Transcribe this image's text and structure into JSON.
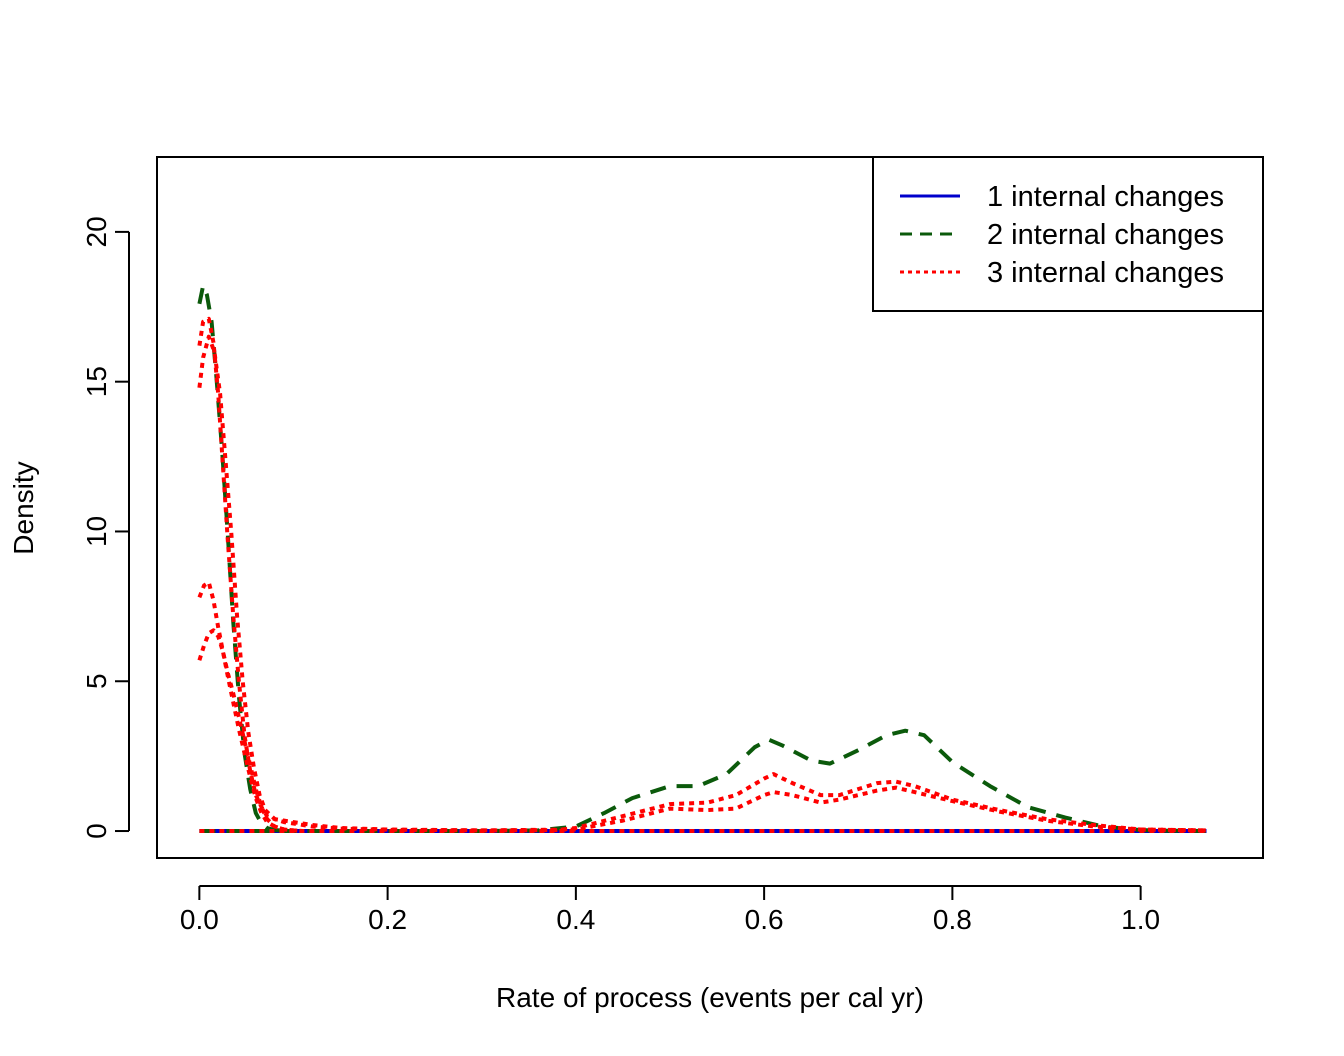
{
  "chart_data": {
    "type": "line",
    "title": "",
    "xlabel": "Rate of process (events per cal yr)",
    "ylabel": "Density",
    "xlim": [
      -0.045,
      1.13
    ],
    "ylim": [
      -0.9,
      22.5
    ],
    "xticks": [
      0.0,
      0.2,
      0.4,
      0.6,
      0.8,
      1.0
    ],
    "xtick_labels": [
      "0.0",
      "0.2",
      "0.4",
      "0.6",
      "0.8",
      "1.0"
    ],
    "yticks": [
      0,
      5,
      10,
      15,
      20
    ],
    "ytick_labels": [
      "0",
      "5",
      "10",
      "15",
      "20"
    ],
    "grid": false,
    "legend_position": "top-right",
    "series": [
      {
        "name": "1 internal changes",
        "color": "#0000cc",
        "style": "solid",
        "curves": [
          {
            "x": [
              0,
              1.07
            ],
            "y": [
              0,
              0
            ]
          }
        ]
      },
      {
        "name": "2 internal changes",
        "color": "#0b5a0b",
        "style": "dashed",
        "curves": [
          {
            "x": [
              0.0,
              0.004,
              0.008,
              0.013,
              0.018,
              0.024,
              0.03,
              0.036,
              0.042,
              0.048,
              0.054,
              0.06,
              0.066,
              0.072,
              0.08,
              0.09,
              0.1
            ],
            "y": [
              17.6,
              18.2,
              17.9,
              17.0,
              15.2,
              12.8,
              10.0,
              7.0,
              4.5,
              2.6,
              1.4,
              0.6,
              0.25,
              0.1,
              0.03,
              0.01,
              0.0
            ]
          },
          {
            "x": [
              0.0,
              0.06,
              0.1,
              0.2,
              0.3,
              0.36,
              0.4,
              0.43,
              0.46,
              0.5,
              0.53,
              0.56,
              0.59,
              0.605,
              0.62,
              0.65,
              0.67,
              0.7,
              0.73,
              0.75,
              0.77,
              0.8,
              0.84,
              0.88,
              0.92,
              0.96,
              1.0,
              1.03,
              1.07
            ],
            "y": [
              0,
              0,
              0,
              0,
              0,
              0.02,
              0.15,
              0.6,
              1.1,
              1.5,
              1.5,
              1.9,
              2.8,
              3.05,
              2.85,
              2.35,
              2.25,
              2.7,
              3.2,
              3.35,
              3.2,
              2.3,
              1.5,
              0.8,
              0.45,
              0.15,
              0.03,
              0.01,
              0.0
            ]
          }
        ]
      },
      {
        "name": "3 internal changes",
        "color": "#ff0000",
        "style": "dotted",
        "curves": [
          {
            "x": [
              0.0,
              0.004,
              0.01,
              0.015,
              0.02,
              0.025,
              0.03,
              0.036,
              0.042,
              0.048,
              0.054,
              0.06,
              0.066,
              0.072,
              0.08,
              0.09,
              0.1,
              0.12,
              0.15,
              0.2,
              0.3,
              0.38,
              0.4,
              0.45,
              0.5,
              0.54,
              0.57,
              0.6,
              0.61,
              0.63,
              0.66,
              0.68,
              0.72,
              0.74,
              0.76,
              0.8,
              0.85,
              0.9,
              0.95,
              1.0,
              1.07
            ],
            "y": [
              16.2,
              17.0,
              17.1,
              16.3,
              14.6,
              12.2,
              9.8,
              7.2,
              5.0,
              3.2,
              2.0,
              1.2,
              0.8,
              0.5,
              0.4,
              0.35,
              0.3,
              0.2,
              0.1,
              0.05,
              0.02,
              0.03,
              0.1,
              0.5,
              0.9,
              0.95,
              1.2,
              1.75,
              1.9,
              1.6,
              1.2,
              1.2,
              1.6,
              1.65,
              1.5,
              1.05,
              0.7,
              0.4,
              0.2,
              0.05,
              0.02
            ]
          },
          {
            "x": [
              0.0,
              0.004,
              0.01,
              0.016,
              0.022,
              0.028,
              0.034,
              0.04,
              0.046,
              0.052,
              0.058,
              0.064,
              0.07,
              0.08,
              0.09,
              0.1,
              0.12,
              0.15,
              0.2,
              0.3,
              0.4,
              0.45,
              0.5,
              0.54,
              0.57,
              0.6,
              0.61,
              0.63,
              0.66,
              0.68,
              0.72,
              0.74,
              0.76,
              0.8,
              0.85,
              0.9,
              0.95,
              1.0,
              1.07
            ],
            "y": [
              14.8,
              15.8,
              16.5,
              16.0,
              14.6,
              12.3,
              9.9,
              7.2,
              5.0,
              3.3,
              2.1,
              1.2,
              0.7,
              0.4,
              0.3,
              0.25,
              0.15,
              0.08,
              0.04,
              0.02,
              0.05,
              0.35,
              0.75,
              0.7,
              0.75,
              1.2,
              1.3,
              1.2,
              0.95,
              1.05,
              1.35,
              1.45,
              1.3,
              1.0,
              0.65,
              0.35,
              0.15,
              0.05,
              0.02
            ]
          },
          {
            "x": [
              0.0,
              0.005,
              0.01,
              0.015,
              0.02,
              0.025,
              0.03,
              0.036,
              0.042,
              0.048,
              0.054,
              0.06,
              0.066,
              0.072,
              0.08,
              0.09,
              0.1,
              0.11
            ],
            "y": [
              7.8,
              8.2,
              8.3,
              7.7,
              6.8,
              6.0,
              5.2,
              4.3,
              3.4,
              2.6,
              1.8,
              1.1,
              0.6,
              0.3,
              0.15,
              0.05,
              0.02,
              0.0
            ]
          },
          {
            "x": [
              0.0,
              0.005,
              0.01,
              0.015,
              0.02,
              0.025,
              0.03,
              0.036,
              0.042,
              0.048,
              0.054,
              0.06,
              0.066,
              0.072,
              0.08,
              0.09,
              0.1,
              0.11
            ],
            "y": [
              5.7,
              6.2,
              6.6,
              6.7,
              6.5,
              6.0,
              5.3,
              4.6,
              3.8,
              3.0,
              2.2,
              1.4,
              0.8,
              0.4,
              0.15,
              0.05,
              0.02,
              0.0
            ]
          },
          {
            "x": [
              0,
              1.07
            ],
            "y": [
              0,
              0
            ]
          }
        ]
      }
    ]
  }
}
